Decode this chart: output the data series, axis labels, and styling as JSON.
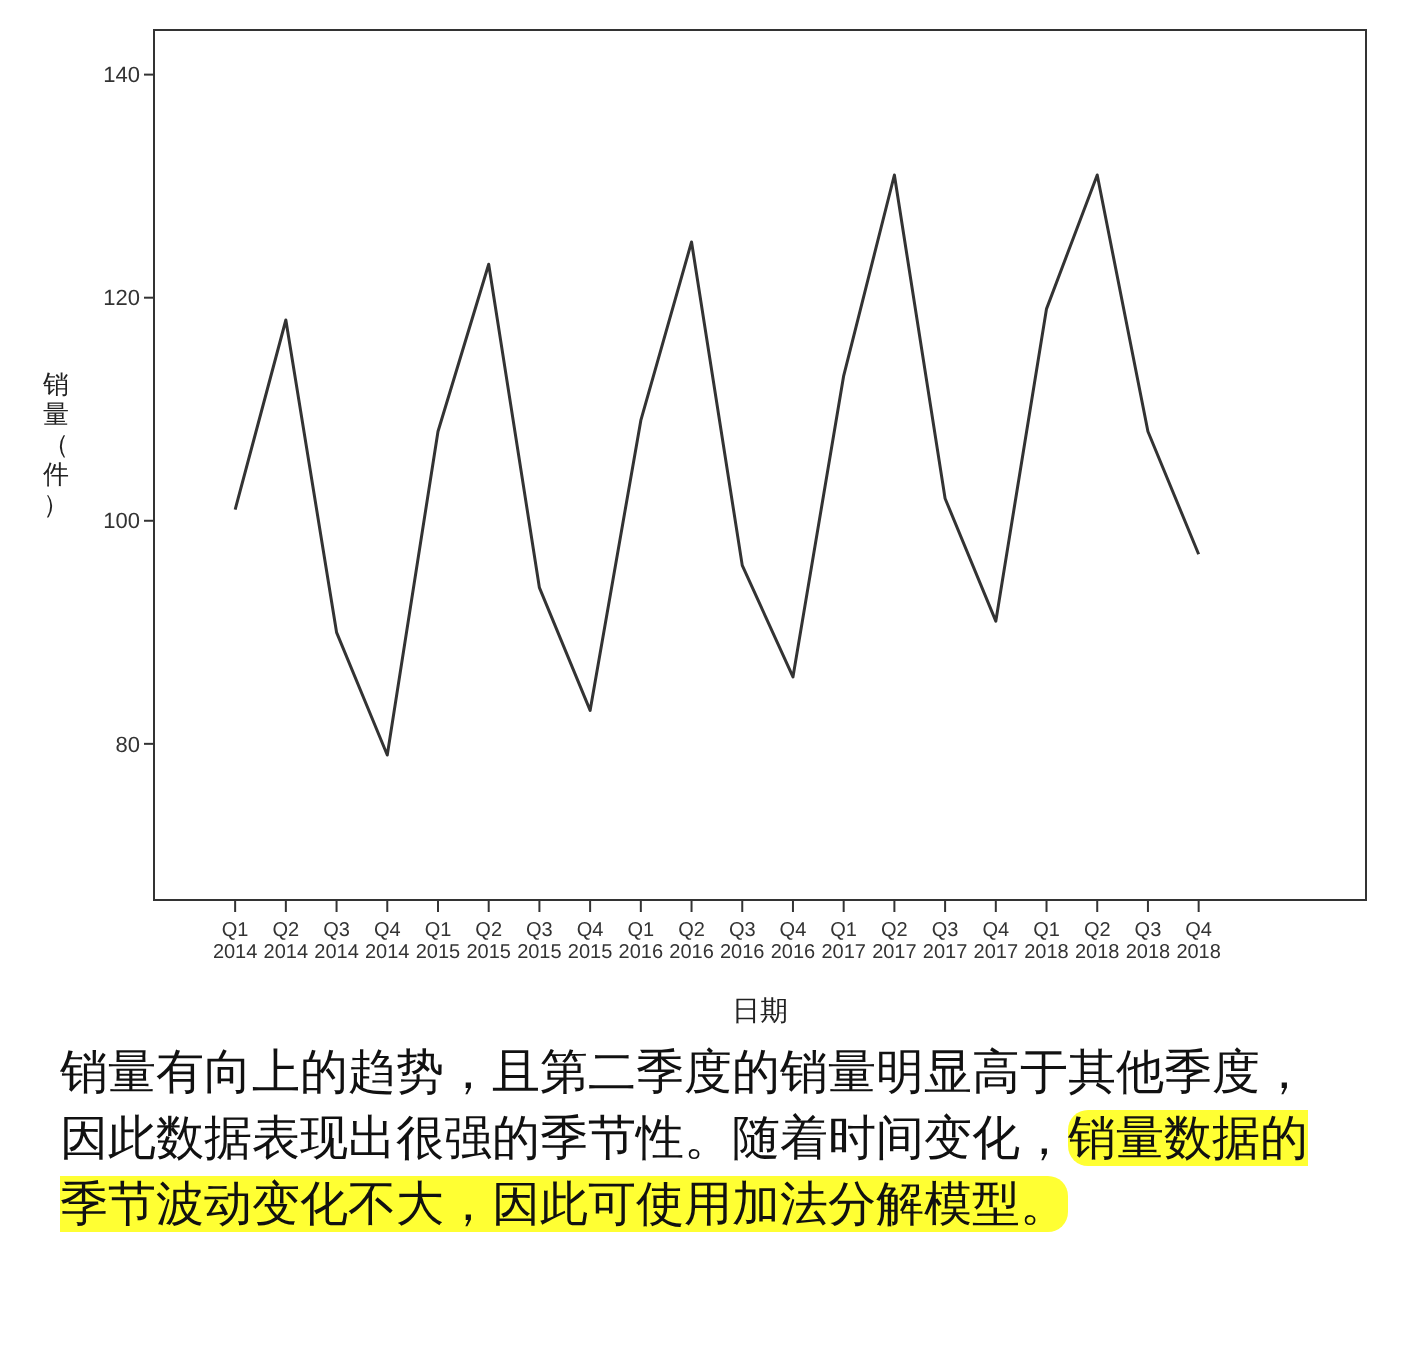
{
  "chart_data": {
    "type": "line",
    "xlabel": "日期",
    "ylabel": "销量（件）",
    "categories": [
      "Q1 2014",
      "Q2 2014",
      "Q3 2014",
      "Q4 2014",
      "Q1 2015",
      "Q2 2015",
      "Q3 2015",
      "Q4 2015",
      "Q1 2016",
      "Q2 2016",
      "Q3 2016",
      "Q4 2016",
      "Q1 2017",
      "Q2 2017",
      "Q3 2017",
      "Q4 2017",
      "Q1 2018",
      "Q2 2018",
      "Q3 2018",
      "Q4 2018"
    ],
    "series": [
      {
        "color": "#333333",
        "values": [
          101,
          118,
          90,
          79,
          108,
          123,
          94,
          83,
          109,
          125,
          96,
          86,
          113,
          131,
          102,
          91,
          119,
          131,
          108,
          97
        ]
      }
    ],
    "ylim": [
      66,
      144
    ],
    "yticks": [
      80,
      100,
      120,
      140
    ],
    "grid": false,
    "marker": "none",
    "line_style": "solid",
    "annotations": [
      "销量有向上的趋势，且第二季度的销量明显高于其他季度，因此数据表现出很强的季节性。随着时间变化，",
      "销量数据的季节波动变化不大，因此可使用加法分解模型。"
    ]
  }
}
